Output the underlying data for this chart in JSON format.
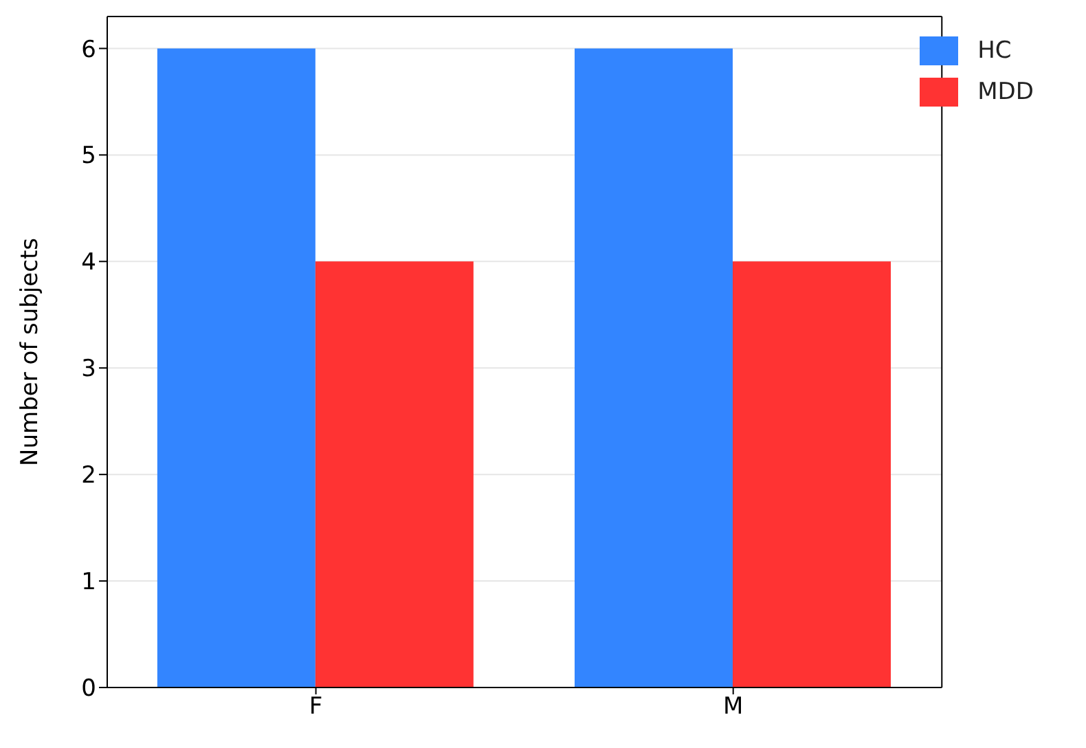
{
  "chart_data": {
    "type": "bar",
    "ylabel": "Number of subjects",
    "categories": [
      "F",
      "M"
    ],
    "series": [
      {
        "name": "HC",
        "color": "#3385ff",
        "values": [
          6,
          6
        ]
      },
      {
        "name": "MDD",
        "color": "#ff3333",
        "values": [
          4,
          4
        ]
      }
    ],
    "ylim": [
      0,
      6.3
    ],
    "yticks": [
      0,
      1,
      2,
      3,
      4,
      5,
      6
    ],
    "grid": "y",
    "legend": "top right"
  }
}
